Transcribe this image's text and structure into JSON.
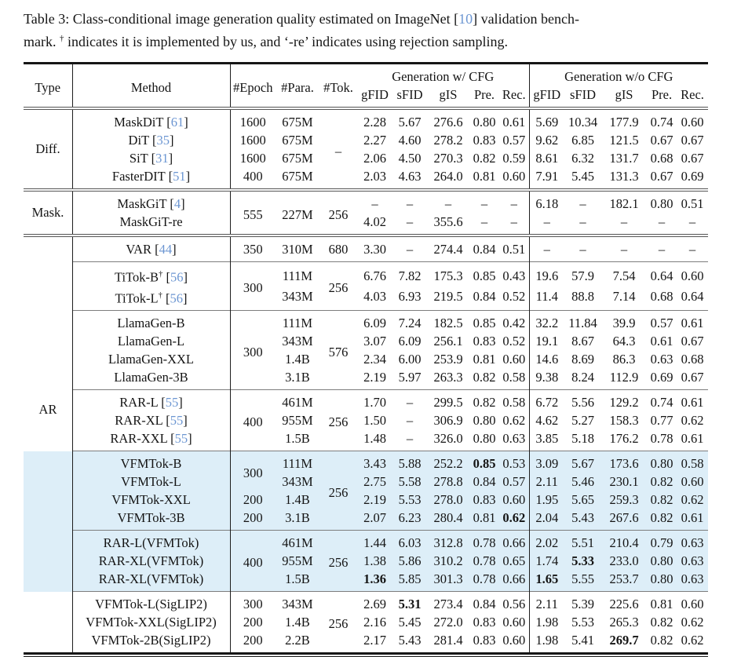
{
  "colors": {
    "citation_blue": "#6c96d2",
    "row_highlight": "#ddeef8"
  },
  "caption": {
    "line1_pre": "Table 3: Class-conditional image generation quality estimated on ImageNet [",
    "line1_cite": "10",
    "line1_post": "] validation bench-",
    "line2_pre": "mark. ",
    "line2_dagger": "†",
    "line2_post": " indicates it is implemented by us, and ‘-re’ indicates using rejection sampling."
  },
  "table": {
    "header": {
      "type": "Type",
      "method": "Method",
      "epoch": "#Epoch",
      "para": "#Para.",
      "tok": "#Tok.",
      "group_w_cfg": "Generation w/ CFG",
      "group_wo_cfg": "Generation w/o CFG",
      "metrics": [
        "gFID",
        "sFID",
        "gIS",
        "Pre.",
        "Rec."
      ]
    },
    "sections": [
      {
        "label": "Diff.",
        "blocks": [
          {
            "highlight": false,
            "rows": [
              {
                "method": {
                  "name": "MaskDiT",
                  "cite": "61"
                },
                "epoch": {
                  "v": "1600"
                },
                "para": {
                  "v": "675M"
                },
                "tok": {
                  "v": "–",
                  "span": 4
                },
                "w": [
                  "2.28",
                  "5.67",
                  "276.6",
                  "0.80",
                  "0.61"
                ],
                "wo": [
                  "5.69",
                  "10.34",
                  "177.9",
                  "0.74",
                  "0.60"
                ]
              },
              {
                "method": {
                  "name": "DiT",
                  "cite": "35"
                },
                "epoch": {
                  "v": "1600"
                },
                "para": {
                  "v": "675M"
                },
                "w": [
                  "2.27",
                  "4.60",
                  "278.2",
                  "0.83",
                  "0.57"
                ],
                "wo": [
                  "9.62",
                  "6.85",
                  "121.5",
                  "0.67",
                  "0.67"
                ]
              },
              {
                "method": {
                  "name": "SiT",
                  "cite": "31"
                },
                "epoch": {
                  "v": "1600"
                },
                "para": {
                  "v": "675M"
                },
                "w": [
                  "2.06",
                  "4.50",
                  "270.3",
                  "0.82",
                  "0.59"
                ],
                "wo": [
                  "8.61",
                  "6.32",
                  "131.7",
                  "0.68",
                  "0.67"
                ]
              },
              {
                "method": {
                  "name": "FasterDIT",
                  "cite": "51"
                },
                "epoch": {
                  "v": "400"
                },
                "para": {
                  "v": "675M"
                },
                "w": [
                  "2.03",
                  "4.63",
                  "264.0",
                  "0.81",
                  "0.60"
                ],
                "wo": [
                  "7.91",
                  "5.45",
                  "131.3",
                  "0.67",
                  "0.69"
                ]
              }
            ]
          }
        ]
      },
      {
        "label": "Mask.",
        "blocks": [
          {
            "highlight": false,
            "rows": [
              {
                "method": {
                  "name": "MaskGiT",
                  "cite": "4"
                },
                "epoch": {
                  "v": "555",
                  "span": 2
                },
                "para": {
                  "v": "227M",
                  "span": 2
                },
                "tok": {
                  "v": "256",
                  "span": 2
                },
                "w": [
                  "–",
                  "–",
                  "–",
                  "–",
                  "–"
                ],
                "wo": [
                  "6.18",
                  "–",
                  "182.1",
                  "0.80",
                  "0.51"
                ]
              },
              {
                "method": {
                  "name": "MaskGiT-re"
                },
                "w": [
                  "4.02",
                  "–",
                  "355.6",
                  "–",
                  "–"
                ],
                "wo": [
                  "–",
                  "–",
                  "–",
                  "–",
                  "–"
                ]
              }
            ]
          }
        ]
      },
      {
        "label": "AR",
        "blocks": [
          {
            "highlight": false,
            "rows": [
              {
                "method": {
                  "name": "VAR",
                  "cite": "44"
                },
                "epoch": {
                  "v": "350"
                },
                "para": {
                  "v": "310M"
                },
                "tok": {
                  "v": "680"
                },
                "w": [
                  "3.30",
                  "–",
                  "274.4",
                  "0.84",
                  "0.51"
                ],
                "wo": [
                  "–",
                  "–",
                  "–",
                  "–",
                  "–"
                ]
              }
            ]
          },
          {
            "highlight": false,
            "rows": [
              {
                "method": {
                  "name": "TiTok-B",
                  "dagger": true,
                  "cite": "56"
                },
                "epoch": {
                  "v": "300",
                  "span": 2
                },
                "para": {
                  "v": "111M"
                },
                "tok": {
                  "v": "256",
                  "span": 2
                },
                "w": [
                  "6.76",
                  "7.82",
                  "175.3",
                  "0.85",
                  "0.43"
                ],
                "wo": [
                  "19.6",
                  "57.9",
                  "7.54",
                  "0.64",
                  "0.60"
                ]
              },
              {
                "method": {
                  "name": "TiTok-L",
                  "dagger": true,
                  "cite": "56"
                },
                "para": {
                  "v": "343M"
                },
                "w": [
                  "4.03",
                  "6.93",
                  "219.5",
                  "0.84",
                  "0.52"
                ],
                "wo": [
                  "11.4",
                  "88.8",
                  "7.14",
                  "0.68",
                  "0.64"
                ]
              }
            ]
          },
          {
            "highlight": false,
            "rows": [
              {
                "method": {
                  "name": "LlamaGen-B"
                },
                "epoch": {
                  "v": "300",
                  "span": 4
                },
                "para": {
                  "v": "111M"
                },
                "tok": {
                  "v": "576",
                  "span": 4
                },
                "w": [
                  "6.09",
                  "7.24",
                  "182.5",
                  "0.85",
                  "0.42"
                ],
                "wo": [
                  "32.2",
                  "11.84",
                  "39.9",
                  "0.57",
                  "0.61"
                ]
              },
              {
                "method": {
                  "name": "LlamaGen-L"
                },
                "para": {
                  "v": "343M"
                },
                "w": [
                  "3.07",
                  "6.09",
                  "256.1",
                  "0.83",
                  "0.52"
                ],
                "wo": [
                  "19.1",
                  "8.67",
                  "64.3",
                  "0.61",
                  "0.67"
                ]
              },
              {
                "method": {
                  "name": "LlamaGen-XXL"
                },
                "para": {
                  "v": "1.4B"
                },
                "w": [
                  "2.34",
                  "6.00",
                  "253.9",
                  "0.81",
                  "0.60"
                ],
                "wo": [
                  "14.6",
                  "8.69",
                  "86.3",
                  "0.63",
                  "0.68"
                ]
              },
              {
                "method": {
                  "name": "LlamaGen-3B"
                },
                "para": {
                  "v": "3.1B"
                },
                "w": [
                  "2.19",
                  "5.97",
                  "263.3",
                  "0.82",
                  "0.58"
                ],
                "wo": [
                  "9.38",
                  "8.24",
                  "112.9",
                  "0.69",
                  "0.67"
                ]
              }
            ]
          },
          {
            "highlight": false,
            "rows": [
              {
                "method": {
                  "name": "RAR-L",
                  "cite": "55"
                },
                "epoch": {
                  "v": "400",
                  "span": 3
                },
                "para": {
                  "v": "461M"
                },
                "tok": {
                  "v": "256",
                  "span": 3
                },
                "w": [
                  "1.70",
                  "–",
                  "299.5",
                  "0.82",
                  "0.58"
                ],
                "wo": [
                  "6.72",
                  "5.56",
                  "129.2",
                  "0.74",
                  "0.61"
                ]
              },
              {
                "method": {
                  "name": "RAR-XL",
                  "cite": "55"
                },
                "para": {
                  "v": "955M"
                },
                "w": [
                  "1.50",
                  "–",
                  "306.9",
                  "0.80",
                  "0.62"
                ],
                "wo": [
                  "4.62",
                  "5.27",
                  "158.3",
                  "0.77",
                  "0.62"
                ]
              },
              {
                "method": {
                  "name": "RAR-XXL",
                  "cite": "55"
                },
                "para": {
                  "v": "1.5B"
                },
                "w": [
                  "1.48",
                  "–",
                  "326.0",
                  "0.80",
                  "0.63"
                ],
                "wo": [
                  "3.85",
                  "5.18",
                  "176.2",
                  "0.78",
                  "0.61"
                ]
              }
            ]
          },
          {
            "highlight": true,
            "rows": [
              {
                "method": {
                  "name": "VFMTok-B"
                },
                "epoch": {
                  "v": "300",
                  "span": 2
                },
                "para": {
                  "v": "111M"
                },
                "tok": {
                  "v": "256",
                  "span": 4
                },
                "w": [
                  "3.43",
                  "5.88",
                  "252.2",
                  "0.85",
                  "0.53"
                ],
                "w_bold": [
                  3
                ],
                "wo": [
                  "3.09",
                  "5.67",
                  "173.6",
                  "0.80",
                  "0.58"
                ]
              },
              {
                "method": {
                  "name": "VFMTok-L"
                },
                "para": {
                  "v": "343M"
                },
                "w": [
                  "2.75",
                  "5.58",
                  "278.8",
                  "0.84",
                  "0.57"
                ],
                "wo": [
                  "2.11",
                  "5.46",
                  "230.1",
                  "0.82",
                  "0.60"
                ]
              },
              {
                "method": {
                  "name": "VFMTok-XXL"
                },
                "epoch": {
                  "v": "200"
                },
                "para": {
                  "v": "1.4B"
                },
                "w": [
                  "2.19",
                  "5.53",
                  "278.0",
                  "0.83",
                  "0.60"
                ],
                "wo": [
                  "1.95",
                  "5.65",
                  "259.3",
                  "0.82",
                  "0.62"
                ]
              },
              {
                "method": {
                  "name": "VFMTok-3B"
                },
                "epoch": {
                  "v": "200"
                },
                "para": {
                  "v": "3.1B"
                },
                "w": [
                  "2.07",
                  "6.23",
                  "280.4",
                  "0.81",
                  "0.62"
                ],
                "w_bold": [
                  4
                ],
                "wo": [
                  "2.04",
                  "5.43",
                  "267.6",
                  "0.82",
                  "0.61"
                ]
              }
            ]
          },
          {
            "highlight": true,
            "rows": [
              {
                "method": {
                  "name": "RAR-L(VFMTok)"
                },
                "epoch": {
                  "v": "400",
                  "span": 3
                },
                "para": {
                  "v": "461M"
                },
                "tok": {
                  "v": "256",
                  "span": 3
                },
                "w": [
                  "1.44",
                  "6.03",
                  "312.8",
                  "0.78",
                  "0.66"
                ],
                "wo": [
                  "2.02",
                  "5.51",
                  "210.4",
                  "0.79",
                  "0.63"
                ]
              },
              {
                "method": {
                  "name": "RAR-XL(VFMTok)"
                },
                "para": {
                  "v": "955M"
                },
                "w": [
                  "1.38",
                  "5.86",
                  "310.2",
                  "0.78",
                  "0.65"
                ],
                "wo": [
                  "1.74",
                  "5.33",
                  "233.0",
                  "0.80",
                  "0.63"
                ],
                "wo_bold": [
                  1
                ]
              },
              {
                "method": {
                  "name": "RAR-XL(VFMTok)"
                },
                "para": {
                  "v": "1.5B"
                },
                "w": [
                  "1.36",
                  "5.85",
                  "301.3",
                  "0.78",
                  "0.66"
                ],
                "w_bold": [
                  0
                ],
                "wo": [
                  "1.65",
                  "5.55",
                  "253.7",
                  "0.80",
                  "0.63"
                ],
                "wo_bold": [
                  0
                ]
              }
            ]
          },
          {
            "highlight": false,
            "rows": [
              {
                "method": {
                  "name": "VFMTok-L(SigLIP2)"
                },
                "epoch": {
                  "v": "300"
                },
                "para": {
                  "v": "343M"
                },
                "tok": {
                  "v": "256",
                  "span": 3
                },
                "w": [
                  "2.69",
                  "5.31",
                  "273.4",
                  "0.84",
                  "0.56"
                ],
                "w_bold": [
                  1
                ],
                "wo": [
                  "2.11",
                  "5.39",
                  "225.6",
                  "0.81",
                  "0.60"
                ]
              },
              {
                "method": {
                  "name": "VFMTok-XXL(SigLIP2)"
                },
                "epoch": {
                  "v": "200"
                },
                "para": {
                  "v": "1.4B"
                },
                "w": [
                  "2.16",
                  "5.45",
                  "272.0",
                  "0.83",
                  "0.60"
                ],
                "wo": [
                  "1.98",
                  "5.53",
                  "265.3",
                  "0.82",
                  "0.62"
                ]
              },
              {
                "method": {
                  "name": "VFMTok-2B(SigLIP2)"
                },
                "epoch": {
                  "v": "200"
                },
                "para": {
                  "v": "2.2B"
                },
                "w": [
                  "2.17",
                  "5.43",
                  "281.4",
                  "0.83",
                  "0.60"
                ],
                "wo": [
                  "1.98",
                  "5.41",
                  "269.7",
                  "0.82",
                  "0.62"
                ],
                "wo_bold": [
                  2
                ]
              }
            ]
          }
        ]
      }
    ]
  }
}
